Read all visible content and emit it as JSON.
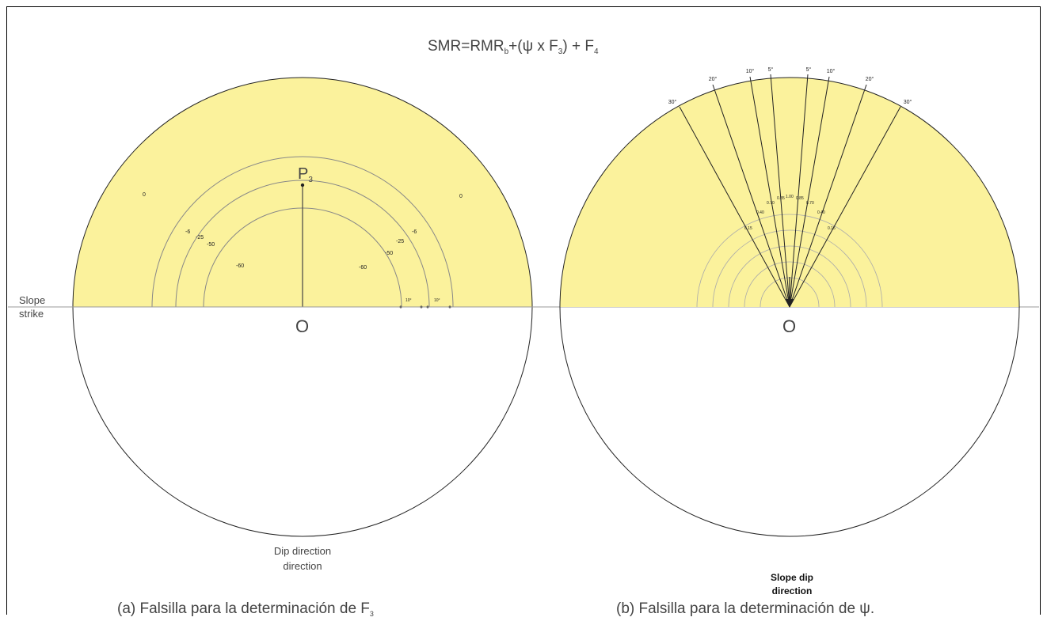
{
  "formula": {
    "main": "SMR=RMR",
    "main_sub": "b",
    "mid": "+(ψ x F",
    "mid_sub": "3",
    "end": ") + F",
    "end_sub": "4"
  },
  "left_panel": {
    "strike_label_line1": "Slope",
    "strike_label_line2": "strike",
    "center_label": "O",
    "pole_label": "P",
    "pole_sub": "3",
    "dip_label_line1": "Dip direction",
    "dip_label_line2": "direction",
    "caption_main": "(a) Falsilla para la determinación de F",
    "caption_sub": "3",
    "arc_labels_left": [
      "-6",
      "-25",
      "-50",
      "-60"
    ],
    "arc_labels_right": [
      "-25",
      "-6",
      "-50",
      "-60"
    ],
    "corner_marks": [
      "0",
      "0"
    ],
    "tick_labels": [
      "10°",
      "10°"
    ]
  },
  "right_panel": {
    "center_label": "O",
    "angle_labels_left": [
      "30°",
      "20°",
      "10°",
      "5°"
    ],
    "angle_labels_right": [
      "5°",
      "10°",
      "20°",
      "30°"
    ],
    "dip_label_line1": "Slope dip",
    "dip_label_line2": "direction",
    "caption_main": "(b) Falsilla para la determinación de ψ",
    "caption_end": ".",
    "inner_values": [
      "0.15",
      "0.40",
      "0.70",
      "0.85",
      "1.00",
      "0.85",
      "0.70",
      "0.40",
      "0.15"
    ]
  }
}
